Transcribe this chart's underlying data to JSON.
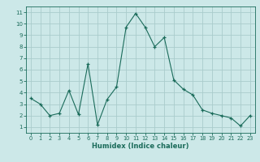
{
  "xlabel": "Humidex (Indice chaleur)",
  "bg_color": "#cce8e8",
  "grid_color": "#aacccc",
  "line_color": "#1a6b5a",
  "x_values": [
    0,
    1,
    2,
    3,
    4,
    5,
    6,
    7,
    8,
    9,
    10,
    11,
    12,
    13,
    14,
    15,
    16,
    17,
    18,
    19,
    20,
    21,
    22,
    23
  ],
  "y_values": [
    3.5,
    3.0,
    2.0,
    2.2,
    4.2,
    2.1,
    6.5,
    1.2,
    3.4,
    4.5,
    9.7,
    10.9,
    9.7,
    8.0,
    8.8,
    5.1,
    4.3,
    3.8,
    2.5,
    2.2,
    2.0,
    1.8,
    1.1,
    2.0
  ],
  "ylim": [
    0.5,
    11.5
  ],
  "xlim": [
    -0.5,
    23.5
  ],
  "yticks": [
    1,
    2,
    3,
    4,
    5,
    6,
    7,
    8,
    9,
    10,
    11
  ],
  "xticks": [
    0,
    1,
    2,
    3,
    4,
    5,
    6,
    7,
    8,
    9,
    10,
    11,
    12,
    13,
    14,
    15,
    16,
    17,
    18,
    19,
    20,
    21,
    22,
    23
  ]
}
